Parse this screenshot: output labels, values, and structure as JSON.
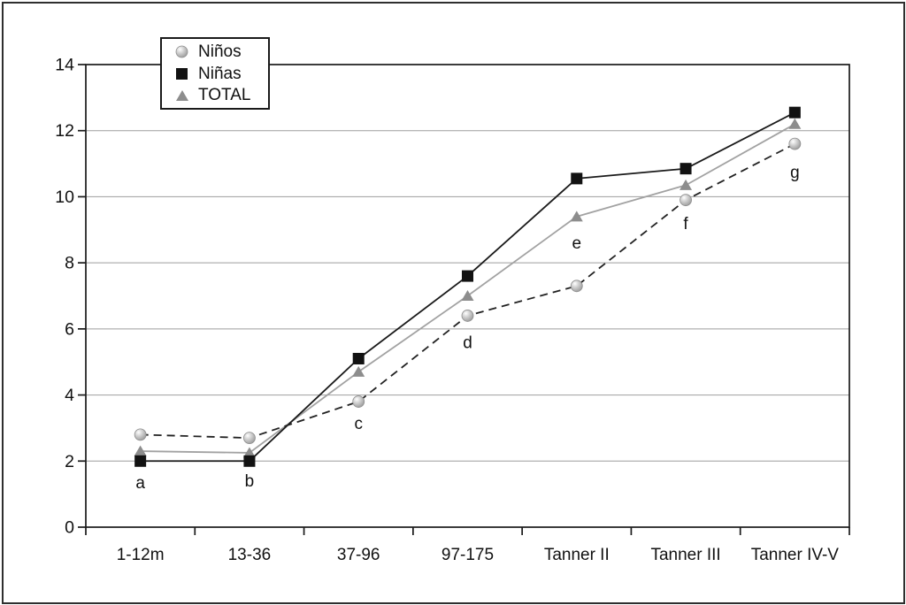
{
  "page": {
    "background_color": "#ffffff",
    "border_color": "#2f2f2f"
  },
  "legend": {
    "position": "top-left-inside",
    "border_color": "#1a1a1a"
  },
  "chart_data": {
    "type": "line",
    "title": "",
    "xlabel": "",
    "ylabel": "",
    "categories": [
      "1-12m",
      "13-36",
      "37-96",
      "97-175",
      "Tanner II",
      "Tanner III",
      "Tanner IV-V"
    ],
    "series": [
      {
        "name": "Niños",
        "marker": "circle",
        "line_style": "dashed",
        "line_color": "#222222",
        "marker_color": "#c6c6c6",
        "values": [
          2.8,
          2.7,
          3.8,
          6.4,
          7.3,
          9.9,
          11.6
        ]
      },
      {
        "name": "Niñas",
        "marker": "square",
        "line_style": "solid",
        "line_color": "#1a1a1a",
        "marker_color": "#121212",
        "values": [
          2.0,
          2.0,
          5.1,
          7.6,
          10.55,
          10.85,
          12.55
        ]
      },
      {
        "name": "TOTAL",
        "marker": "triangle",
        "line_style": "solid",
        "line_color": "#a2a2a2",
        "marker_color": "#8d8d8d",
        "values": [
          2.3,
          2.25,
          4.7,
          7.0,
          9.4,
          10.35,
          12.2
        ]
      }
    ],
    "annotations": [
      {
        "label": "a",
        "x": 0,
        "y": 1.35
      },
      {
        "label": "b",
        "x": 1,
        "y": 1.4
      },
      {
        "label": "c",
        "x": 2,
        "y": 3.15
      },
      {
        "label": "d",
        "x": 3,
        "y": 5.6
      },
      {
        "label": "e",
        "x": 4,
        "y": 8.6
      },
      {
        "label": "f",
        "x": 5,
        "y": 9.2
      },
      {
        "label": "g",
        "x": 6,
        "y": 10.75
      }
    ],
    "ylim": [
      0,
      14
    ],
    "yticks": [
      0,
      2,
      4,
      6,
      8,
      10,
      12,
      14
    ],
    "grid": true,
    "gridline_color": "#9e9e9e",
    "axis_color": "#1a1a1a",
    "tick_label_color": "#111111",
    "legend_position": "top-left-inside"
  }
}
